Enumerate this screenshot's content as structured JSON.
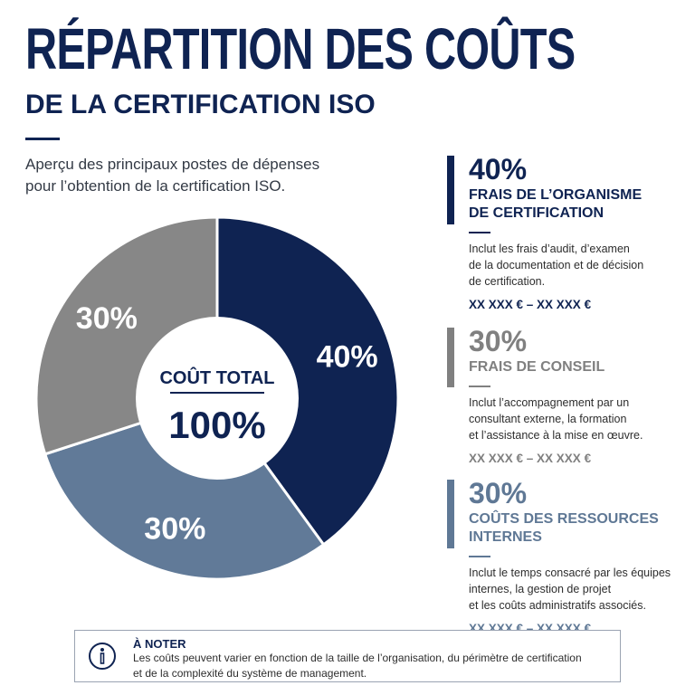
{
  "header": {
    "title": "RÉPARTITION DES COÛTS",
    "subtitle": "DE LA CERTIFICATION ISO",
    "intro_line1": "Aperçu des principaux postes de dépenses",
    "intro_line2": "pour l’obtention de la certification ISO."
  },
  "chart_data": {
    "type": "pie",
    "donut": true,
    "center_title": "COÛT TOTAL",
    "center_value": "100%",
    "slices": [
      {
        "label": "40%",
        "value": 40,
        "color": "#0f2352"
      },
      {
        "label": "30%",
        "value": 30,
        "color": "#617a98"
      },
      {
        "label": "30%",
        "value": 30,
        "color": "#878787"
      }
    ]
  },
  "legend": [
    {
      "percent": "40%",
      "title_line1": "FRAIS DE L’ORGANISME",
      "title_line2": "DE CERTIFICATION",
      "desc_line1": "Inclut les frais d’audit, d’examen",
      "desc_line2": "de la documentation et de décision",
      "desc_line3": "de certification.",
      "price": "XX XXX € – XX XXX €",
      "color": "#0f2352"
    },
    {
      "percent": "30%",
      "title_line1": "FRAIS DE CONSEIL",
      "title_line2": "",
      "desc_line1": "Inclut l’accompagnement par un",
      "desc_line2": "consultant externe, la formation",
      "desc_line3": "et l’assistance à la mise en œuvre.",
      "price": "XX XXX € – XX XXX €",
      "color": "#808080"
    },
    {
      "percent": "30%",
      "title_line1": "COÛTS DES RESSOURCES",
      "title_line2": "INTERNES",
      "desc_line1": "Inclut le temps consacré par les équipes",
      "desc_line2": "internes, la gestion de projet",
      "desc_line3": "et les coûts administratifs associés.",
      "price": "XX XXX € – XX XXX €",
      "color": "#5f7895"
    }
  ],
  "note": {
    "icon": "info-icon",
    "title": "À NOTER",
    "line1": "Les coûts peuvent varier en fonction de la taille de l’organisation, du périmètre de certification",
    "line2": "et de la complexité du système de management."
  }
}
